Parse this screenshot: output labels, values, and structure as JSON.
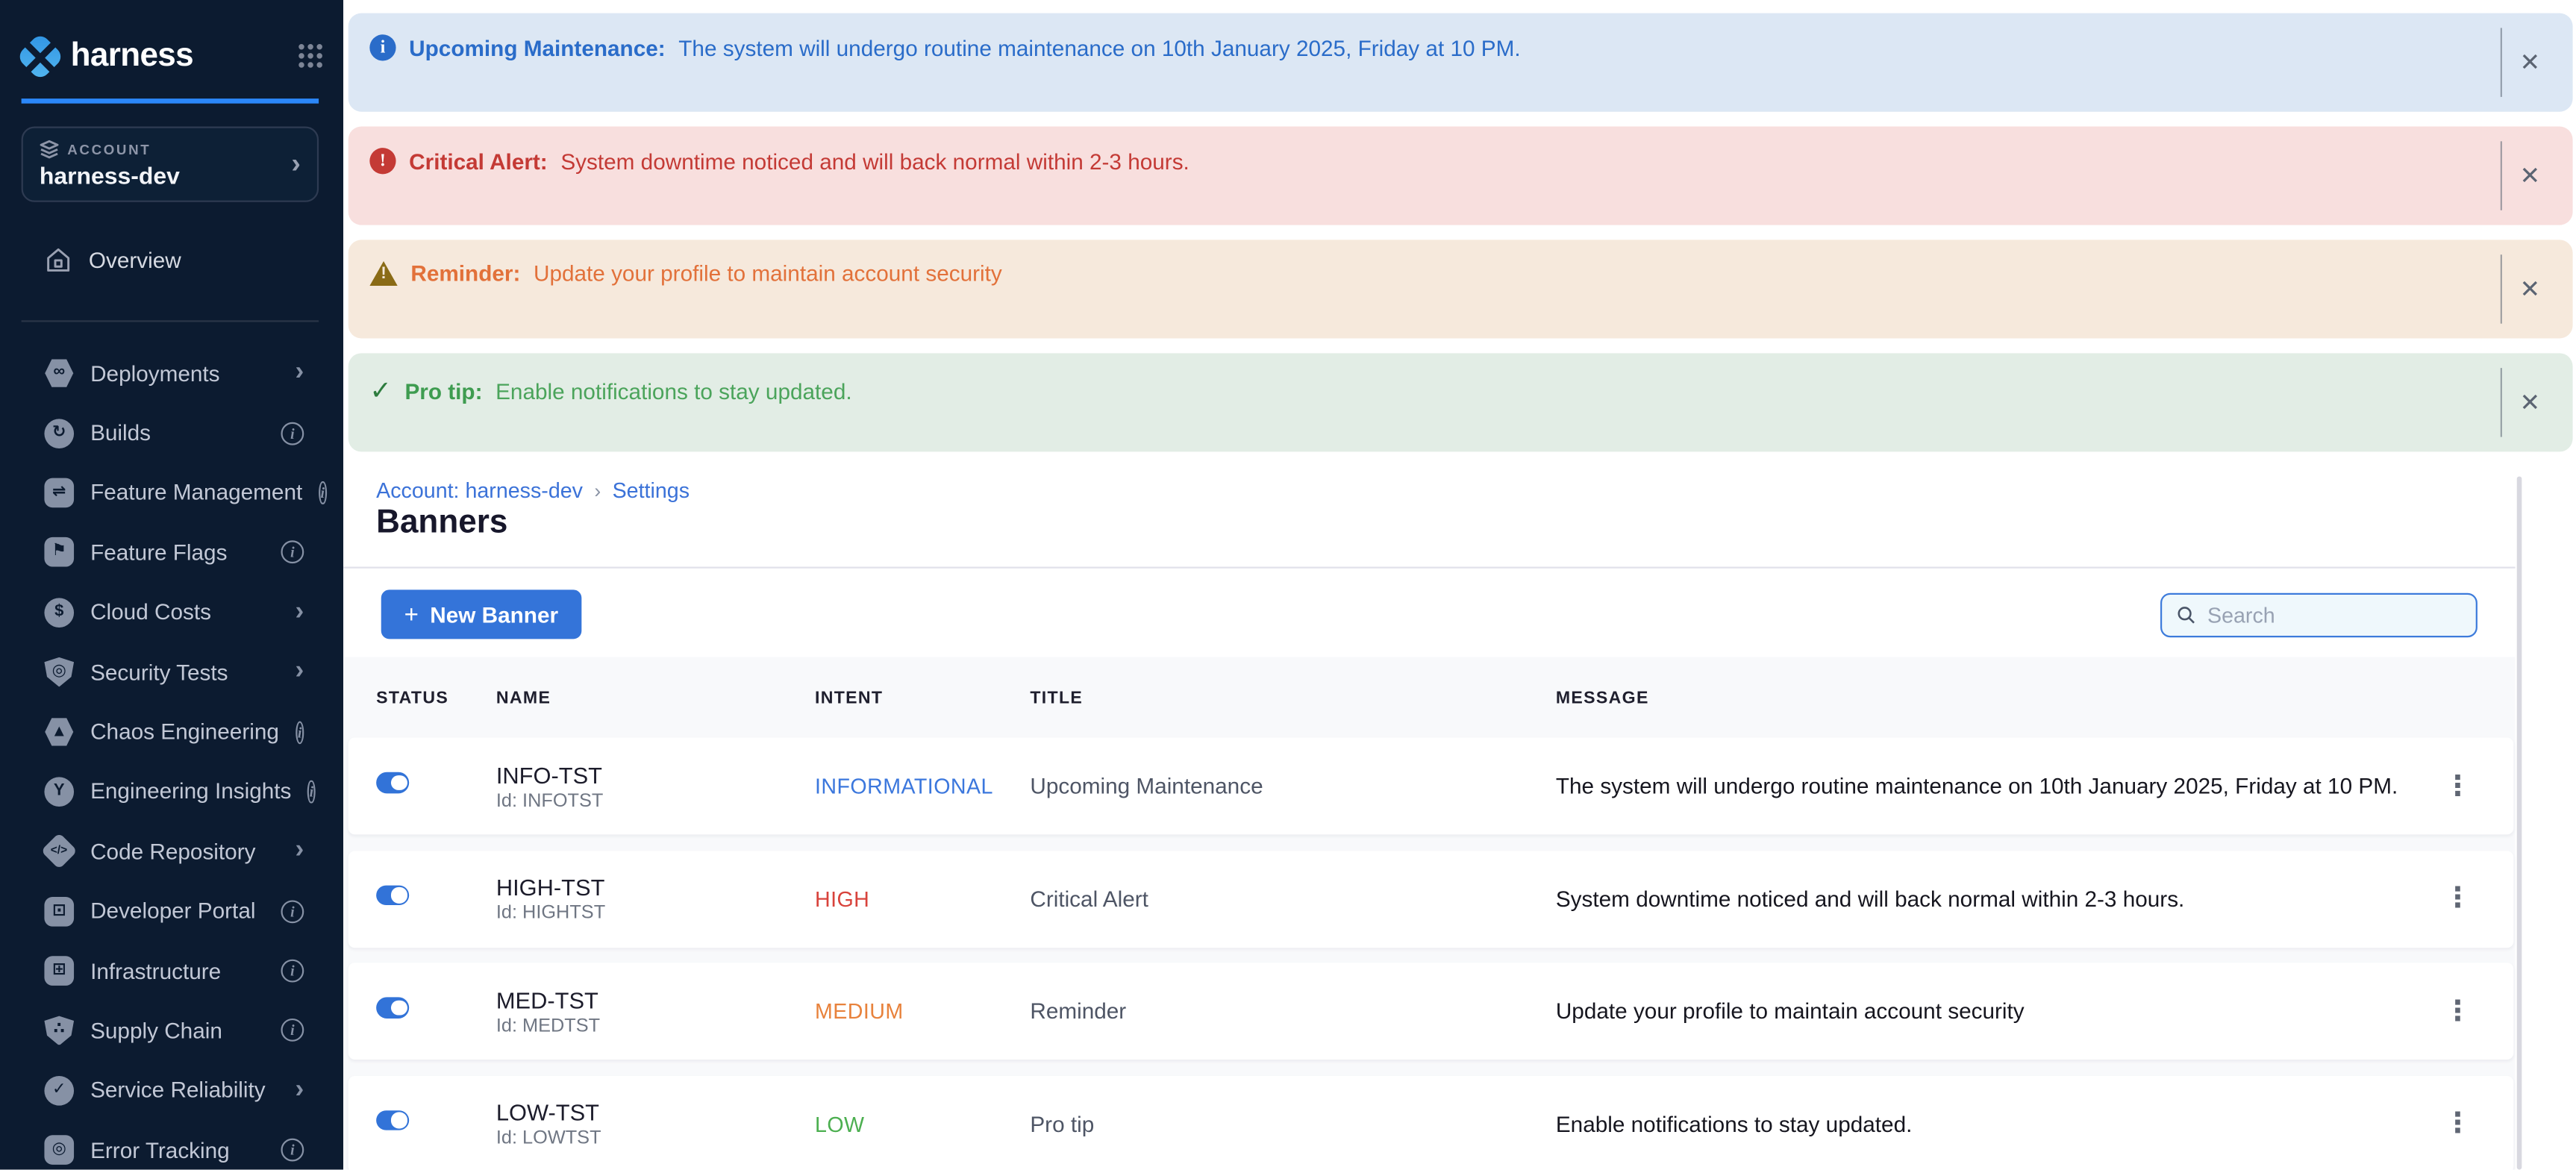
{
  "app": {
    "brand": "harness"
  },
  "icons": {
    "close": "✕",
    "kebab": "⋮",
    "chevron": "›",
    "breadcrumb_separator": "›"
  },
  "sidebar": {
    "account_label": "ACCOUNT",
    "account_name": "harness-dev",
    "overview_label": "Overview",
    "items": [
      {
        "label": "Deployments",
        "icon": "deployments-icon",
        "accessory": "chevron"
      },
      {
        "label": "Builds",
        "icon": "builds-icon",
        "accessory": "info"
      },
      {
        "label": "Feature Management",
        "icon": "feature-management-icon",
        "accessory": "info"
      },
      {
        "label": "Feature Flags",
        "icon": "feature-flags-icon",
        "accessory": "info"
      },
      {
        "label": "Cloud Costs",
        "icon": "cloud-costs-icon",
        "accessory": "chevron"
      },
      {
        "label": "Security Tests",
        "icon": "security-tests-icon",
        "accessory": "chevron"
      },
      {
        "label": "Chaos Engineering",
        "icon": "chaos-engineering-icon",
        "accessory": "info"
      },
      {
        "label": "Engineering Insights",
        "icon": "engineering-insights-icon",
        "accessory": "info"
      },
      {
        "label": "Code Repository",
        "icon": "code-repository-icon",
        "accessory": "chevron"
      },
      {
        "label": "Developer Portal",
        "icon": "developer-portal-icon",
        "accessory": "info"
      },
      {
        "label": "Infrastructure",
        "icon": "infrastructure-icon",
        "accessory": "info"
      },
      {
        "label": "Supply Chain",
        "icon": "supply-chain-icon",
        "accessory": "info"
      },
      {
        "label": "Service Reliability",
        "icon": "service-reliability-icon",
        "accessory": "chevron"
      },
      {
        "label": "Error Tracking",
        "icon": "error-tracking-icon",
        "accessory": "info"
      }
    ]
  },
  "banners": [
    {
      "intent": "info",
      "icon": "info-circle-icon",
      "label": "Upcoming Maintenance:",
      "message": "The system will undergo routine maintenance on 10th January 2025, Friday at 10 PM."
    },
    {
      "intent": "critical",
      "icon": "alert-circle-icon",
      "label": "Critical Alert:",
      "message": "System downtime noticed and will back normal within 2-3 hours."
    },
    {
      "intent": "warning",
      "icon": "warning-triangle-icon",
      "label": "Reminder:",
      "message": "Update your profile to maintain account security"
    },
    {
      "intent": "success",
      "icon": "check-icon",
      "label": "Pro tip:",
      "message": "Enable notifications to stay updated."
    }
  ],
  "breadcrumb": {
    "account": "Account: harness-dev",
    "settings": "Settings"
  },
  "page": {
    "title": "Banners"
  },
  "toolbar": {
    "new_banner_label": "New Banner",
    "plus": "+",
    "search_placeholder": "Search"
  },
  "table": {
    "columns": [
      "STATUS",
      "NAME",
      "INTENT",
      "TITLE",
      "MESSAGE"
    ],
    "rows": [
      {
        "name": "INFO-TST",
        "id": "Id: INFOTST",
        "intent": "INFORMATIONAL",
        "intent_key": "informational",
        "title": "Upcoming Maintenance",
        "status_on": true,
        "message": "The system will undergo routine maintenance on 10th January 2025, Friday at 10 PM."
      },
      {
        "name": "HIGH-TST",
        "id": "Id: HIGHTST",
        "intent": "HIGH",
        "intent_key": "high",
        "title": "Critical Alert",
        "status_on": true,
        "message": "System downtime noticed and will back normal within 2-3 hours."
      },
      {
        "name": "MED-TST",
        "id": "Id: MEDTST",
        "intent": "MEDIUM",
        "intent_key": "medium",
        "title": "Reminder",
        "status_on": true,
        "message": "Update your profile to maintain account security"
      },
      {
        "name": "LOW-TST",
        "id": "Id: LOWTST",
        "intent": "LOW",
        "intent_key": "low",
        "title": "Pro tip",
        "status_on": true,
        "message": "Enable notifications to stay updated."
      }
    ]
  },
  "colors": {
    "sidebar_bg": "#0C1B30",
    "accent_blue": "#3474D9",
    "logo_blue": "#3AA0E8",
    "banner_info_bg": "#DCE7F4",
    "banner_info_fg": "#2A6CC9",
    "banner_critical_bg": "#F8DFDE",
    "banner_critical_fg": "#C43A35",
    "banner_warning_bg": "#F6E9DC",
    "banner_warning_fg": "#E2713A",
    "banner_success_bg": "#E2EDE5",
    "banner_success_fg": "#4BA45B",
    "intent_informational": "#3B77DD",
    "intent_high": "#D8433C",
    "intent_medium": "#E8823C",
    "intent_low": "#4CAF50",
    "toggle_on": "#3273D8"
  }
}
